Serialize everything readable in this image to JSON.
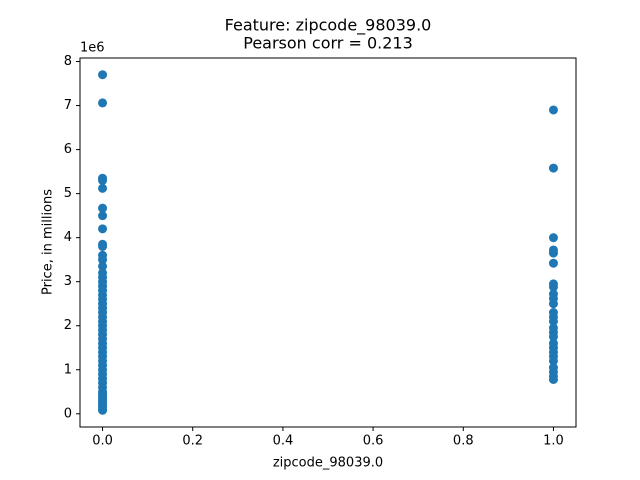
{
  "chart_data": {
    "type": "scatter",
    "title": "Feature: zipcode_98039.0",
    "subtitle": "Pearson corr = 0.213",
    "xlabel": "zipcode_98039.0",
    "ylabel": "Price, in millions",
    "y_offset_label": "1e6",
    "color": "#1f77b4",
    "x": [
      0,
      0,
      0,
      0,
      0,
      0,
      0,
      0,
      0,
      0,
      0,
      0,
      0,
      0,
      0,
      0,
      0,
      0,
      0,
      0,
      0,
      0,
      0,
      0,
      0,
      0,
      0,
      0,
      0,
      0,
      0,
      0,
      0,
      0,
      0,
      0,
      0,
      0,
      0,
      0,
      0,
      0,
      0,
      0,
      0,
      0,
      0,
      0,
      0,
      0,
      1,
      1,
      1,
      1,
      1,
      1,
      1,
      1,
      1,
      1,
      1,
      1,
      1,
      1,
      1,
      1,
      1,
      1,
      1,
      1,
      1,
      1,
      1,
      1,
      1,
      1
    ],
    "values": [
      7.7,
      7.06,
      5.35,
      5.3,
      5.12,
      4.67,
      4.5,
      4.2,
      3.85,
      3.8,
      3.6,
      3.5,
      3.35,
      3.2,
      3.1,
      3.0,
      2.9,
      2.8,
      2.7,
      2.6,
      2.5,
      2.4,
      2.3,
      2.2,
      2.1,
      2.0,
      1.9,
      1.8,
      1.7,
      1.6,
      1.5,
      1.4,
      1.3,
      1.2,
      1.1,
      1.0,
      0.9,
      0.8,
      0.7,
      0.6,
      0.5,
      0.45,
      0.4,
      0.35,
      0.3,
      0.25,
      0.2,
      0.15,
      0.1,
      0.08,
      6.9,
      5.58,
      4.0,
      3.72,
      3.65,
      3.42,
      2.95,
      2.88,
      2.72,
      2.62,
      2.5,
      2.3,
      2.2,
      2.1,
      1.95,
      1.85,
      1.75,
      1.6,
      1.5,
      1.4,
      1.3,
      1.2,
      1.05,
      0.95,
      0.85,
      0.78
    ],
    "xlim": [
      -0.05,
      1.05
    ],
    "ylim": [
      -0.3,
      8.08
    ],
    "xticks": [
      {
        "value": 0,
        "label": "0.0"
      },
      {
        "value": 0.2,
        "label": "0.2"
      },
      {
        "value": 0.4,
        "label": "0.4"
      },
      {
        "value": 0.6,
        "label": "0.6"
      },
      {
        "value": 0.8,
        "label": "0.8"
      },
      {
        "value": 1,
        "label": "1.0"
      }
    ],
    "yticks": [
      0,
      1,
      2,
      3,
      4,
      5,
      6,
      7,
      8
    ],
    "grid": false
  }
}
